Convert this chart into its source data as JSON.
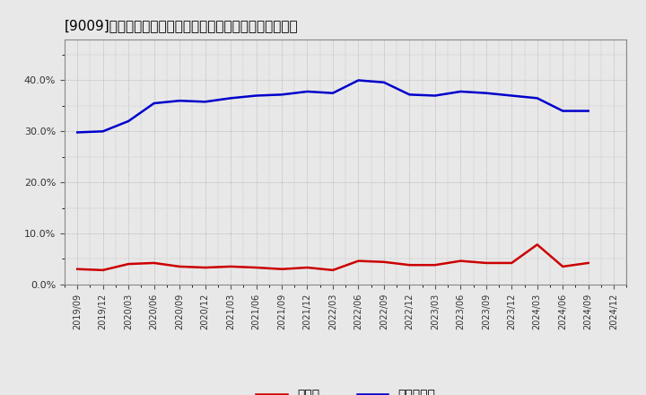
{
  "title": "[9009]　現顔金、有利子負債の総資産に対する比率の推移",
  "x_labels": [
    "2019/09",
    "2019/12",
    "2020/03",
    "2020/06",
    "2020/09",
    "2020/12",
    "2021/03",
    "2021/06",
    "2021/09",
    "2021/12",
    "2022/03",
    "2022/06",
    "2022/09",
    "2022/12",
    "2023/03",
    "2023/06",
    "2023/09",
    "2023/12",
    "2024/03",
    "2024/06",
    "2024/09",
    "2024/12"
  ],
  "cash": [
    0.03,
    0.028,
    0.04,
    0.042,
    0.035,
    0.033,
    0.035,
    0.033,
    0.03,
    0.033,
    0.028,
    0.046,
    0.044,
    0.038,
    0.038,
    0.046,
    0.042,
    0.042,
    0.078,
    0.035,
    0.042,
    null
  ],
  "debt": [
    0.298,
    0.3,
    0.32,
    0.355,
    0.36,
    0.358,
    0.365,
    0.37,
    0.372,
    0.378,
    0.375,
    0.4,
    0.396,
    0.372,
    0.37,
    0.378,
    0.375,
    0.37,
    0.365,
    0.34,
    0.34,
    null
  ],
  "cash_color": "#cc0000",
  "debt_color": "#0000cc",
  "bg_color": "#e8e8e8",
  "plot_bg_color": "#e8e8e8",
  "legend_cash": "現顔金",
  "legend_debt": "有利子負債",
  "ylim": [
    0.0,
    0.48
  ],
  "yticks": [
    0.0,
    0.1,
    0.2,
    0.3,
    0.4
  ],
  "grid_color": "#999999",
  "title_fontsize": 11
}
